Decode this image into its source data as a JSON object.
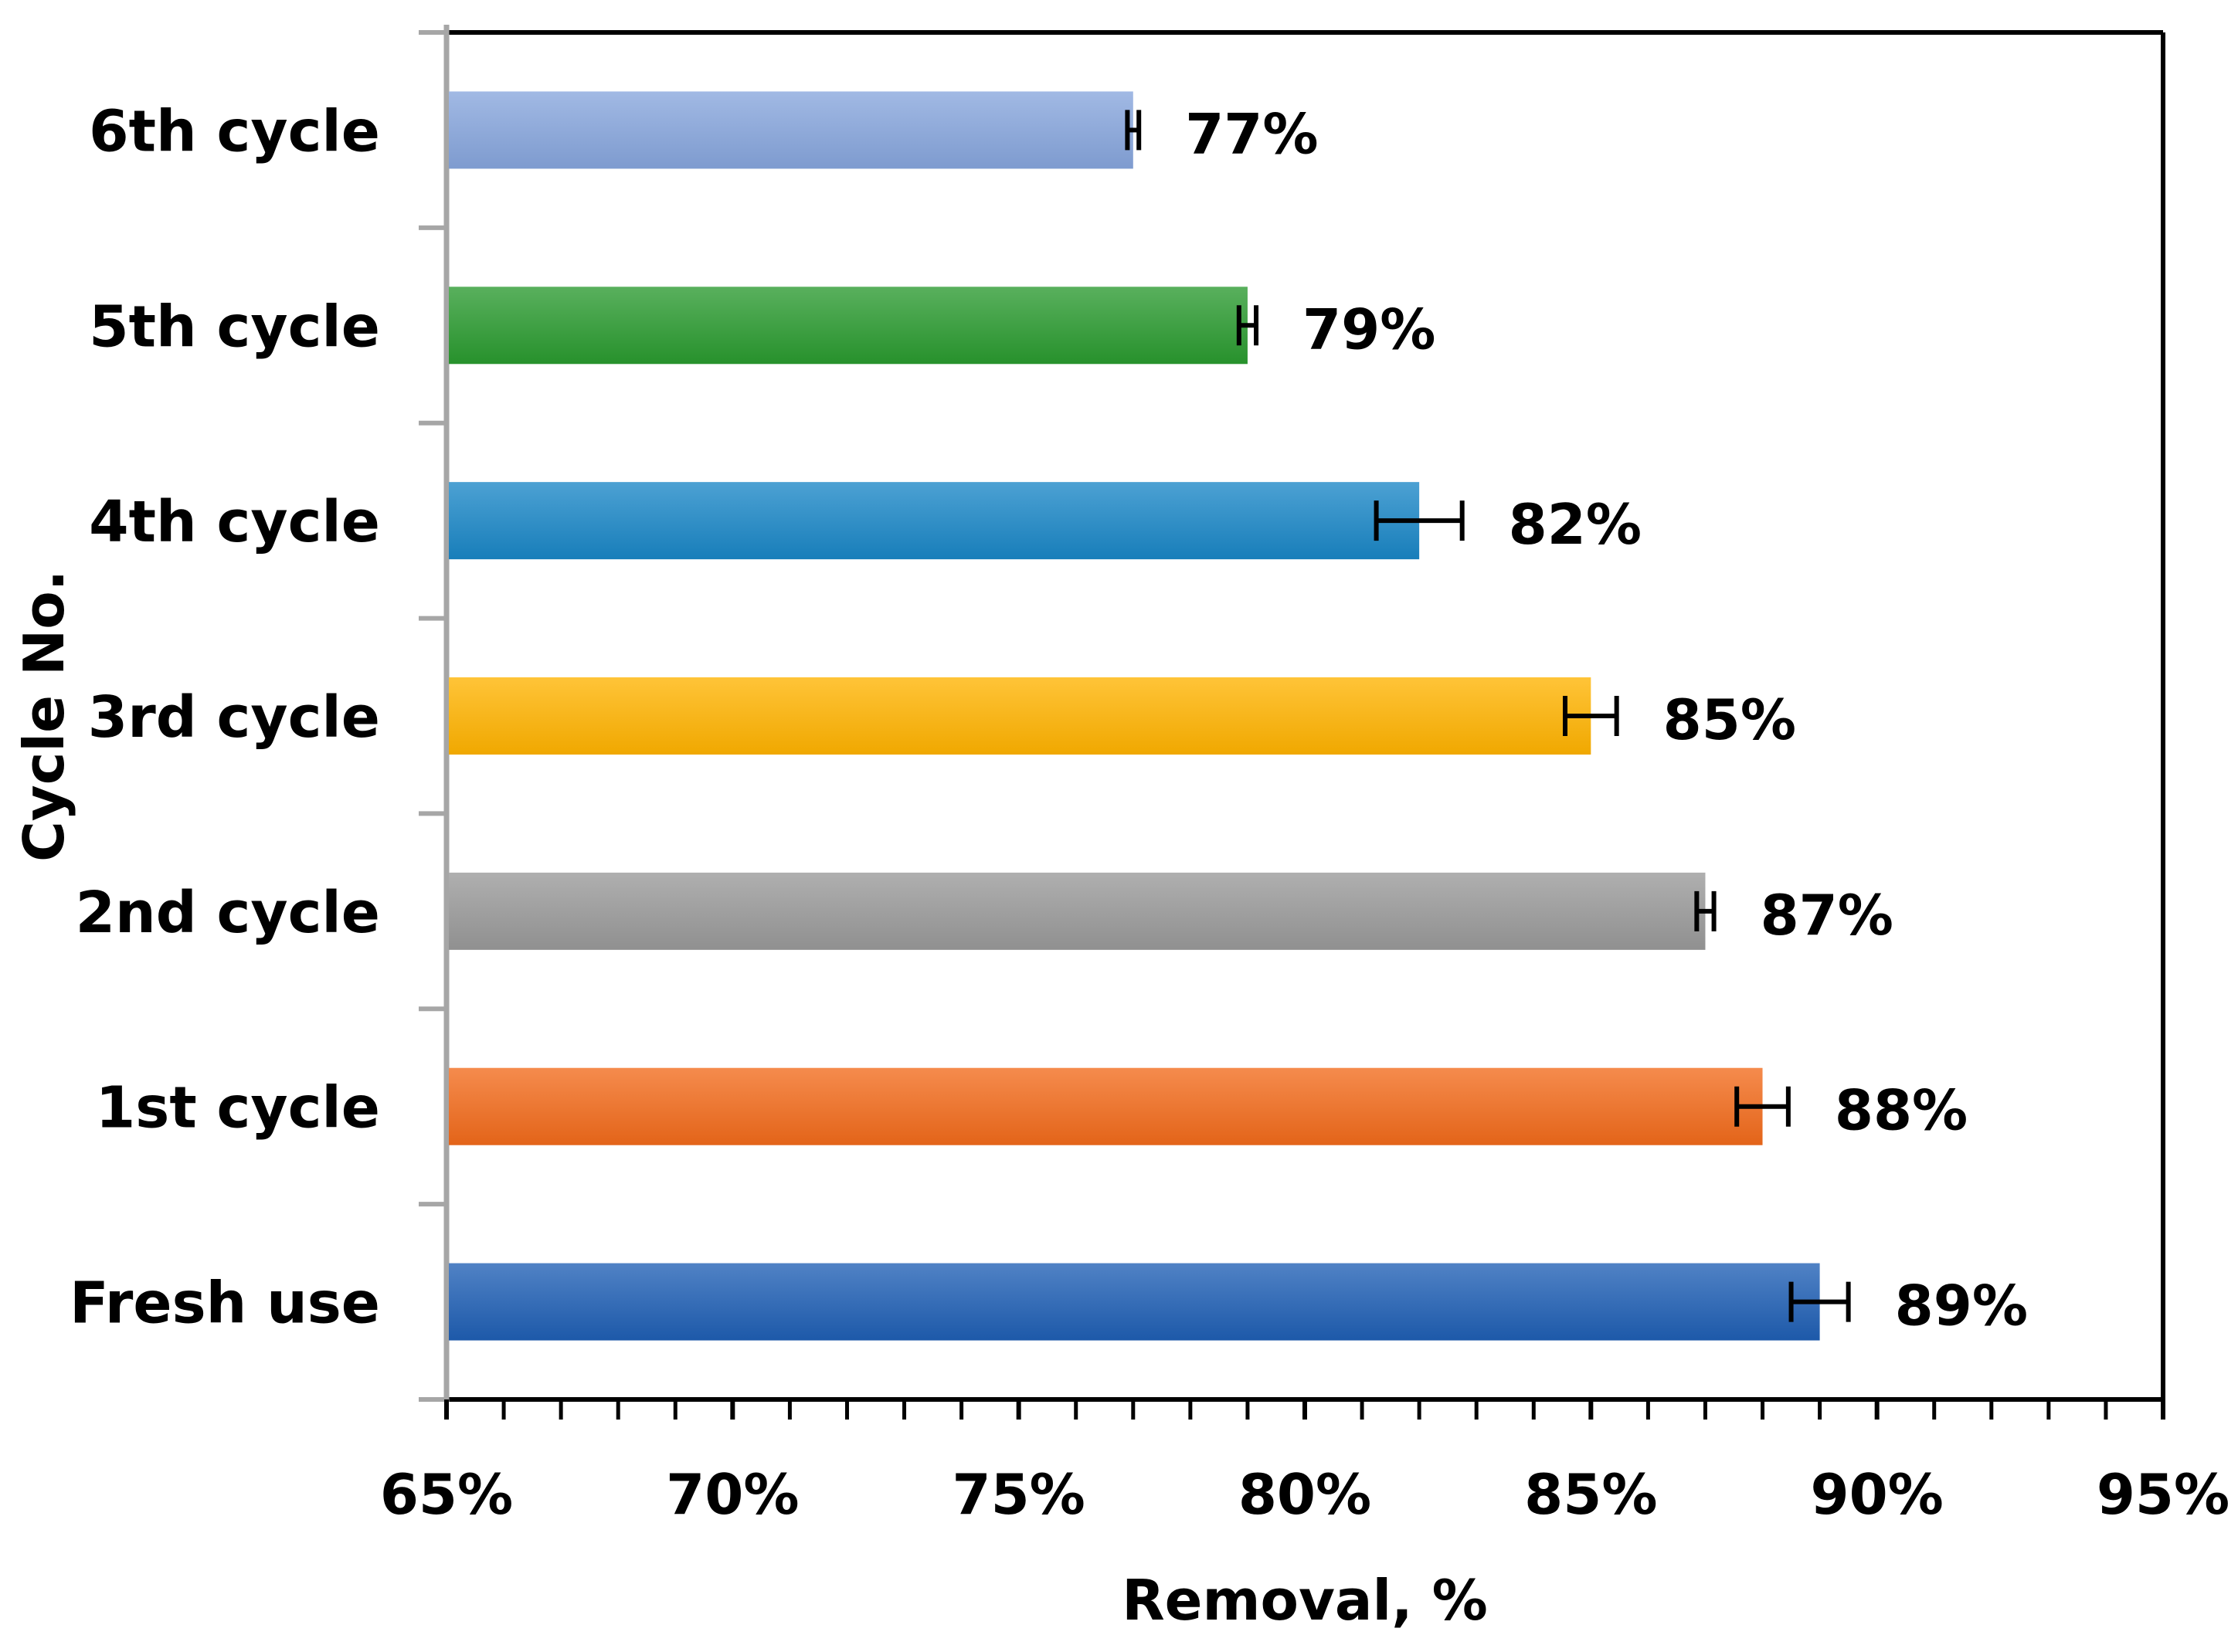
{
  "chart_data": {
    "type": "bar",
    "orientation": "horizontal",
    "categories": [
      "Fresh use",
      "1st cycle",
      "2nd cycle",
      "3rd cycle",
      "4th cycle",
      "5th cycle",
      "6th cycle"
    ],
    "values": [
      89,
      88,
      87,
      85,
      82,
      79,
      77
    ],
    "errors": [
      0.5,
      0.45,
      0.15,
      0.45,
      0.75,
      0.15,
      0.1
    ],
    "data_labels": [
      "89%",
      "88%",
      "87%",
      "85%",
      "82%",
      "79%",
      "77%"
    ],
    "bar_colors": [
      "#1f5fb4",
      "#f26a1b",
      "#999999",
      "#ffb300",
      "#1a86c6",
      "#2a9a2f",
      "#86a5dc"
    ],
    "xlabel": "Removal,  %",
    "ylabel": "Cycle No.",
    "xlim": [
      65,
      95
    ],
    "xticks": [
      65,
      70,
      75,
      80,
      85,
      90,
      95
    ],
    "xtick_labels": [
      "65%",
      "70%",
      "75%",
      "80%",
      "85%",
      "90%",
      "95%"
    ],
    "minor_tick_step": 1,
    "grid": false,
    "legend": "none"
  }
}
